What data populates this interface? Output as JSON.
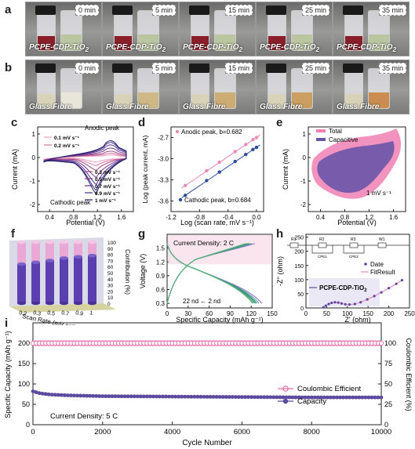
{
  "panels": {
    "a": {
      "letter": "a",
      "caption": "PCPE-CDP-TiO",
      "caption_sub": "2",
      "times": [
        "0 min",
        "5 min",
        "15 min",
        "25 min",
        "35 min"
      ]
    },
    "b": {
      "letter": "b",
      "caption": "Glass Fibre",
      "times": [
        "0 min",
        "5 min",
        "15 min",
        "25 min",
        "35 min"
      ]
    },
    "c": {
      "letter": "c",
      "xlabel": "Potential (V)",
      "ylabel": "Current (mA)",
      "anodic": "Anodic peak",
      "cathodic": "Cathodic peak",
      "legend": [
        "0.1 mV s⁻¹",
        "0.2 mV s⁻¹",
        "0.3 mV s⁻¹",
        "0.5 mV s⁻¹",
        "0.7 mV s⁻¹",
        "0.9 mV s⁻¹",
        "1 mV s⁻¹"
      ]
    },
    "d": {
      "letter": "d",
      "xlabel": "Log (scan rate, mV s⁻¹)",
      "ylabel": "Log (peak current, mA)",
      "anodic": "Anodic peak, b=0.682",
      "cathodic": "Cathodic peak, b=0.684"
    },
    "e": {
      "letter": "e",
      "xlabel": "Potential (V)",
      "ylabel": "Current (mA)",
      "legend": [
        "Total",
        "Capacitive"
      ],
      "rate": "1 mV s⁻¹"
    },
    "f": {
      "letter": "f",
      "xlabel": "Scan Rate (mV s⁻¹)",
      "ylabel": "Contribution (%)"
    },
    "g": {
      "letter": "g",
      "xlabel": "Specific Capacity (mAh g⁻¹)",
      "ylabel": "Voltage (V)",
      "density": "Current Density: 2 C",
      "cycles": "22 nd  ←  2 nd"
    },
    "h": {
      "letter": "h",
      "xlabel": "Z' (ohm)",
      "ylabel": "-Z'' (ohm)",
      "legend": [
        "Date",
        "FitResult"
      ],
      "sample": "PCPE-CDP-TiO",
      "sample_sub": "2",
      "circuit": [
        "R1",
        "R2",
        "CPE1",
        "R3",
        "CPE2",
        "W1"
      ]
    },
    "i": {
      "letter": "i",
      "xlabel": "Cycle Number",
      "ylabel_left": "Specific Capacity (mAh g⁻¹)",
      "ylabel_right": "Coulombic Efficient (%)",
      "legend": [
        "Coulombic Efficient",
        "Capacity"
      ],
      "density": "Current Density: 5 C"
    }
  },
  "colors": {
    "pink": "#e36fa8",
    "purple": "#5b4a9e",
    "lightpink": "#f2a9cc",
    "green": "#2e8b6e",
    "blue": "#2e4c9e"
  },
  "chart_data": [
    {
      "type": "line",
      "panel": "c",
      "xlim": [
        0.2,
        1.8
      ],
      "ylim": [
        -2.3,
        1.3
      ],
      "xticks": [
        "0.4",
        "0.8",
        "1.2",
        "1.6"
      ],
      "yticks": [
        "1",
        "0",
        "-1",
        "-2"
      ],
      "series_names": [
        "0.1 mV s⁻¹",
        "0.2 mV s⁻¹",
        "0.3 mV s⁻¹",
        "0.5 mV s⁻¹",
        "0.7 mV s⁻¹",
        "0.9 mV s⁻¹",
        "1 mV s⁻¹"
      ],
      "series_colors": [
        "#e8a0c0",
        "#d46fa0",
        "#a04a8a",
        "#7a3a8a",
        "#5a3090",
        "#3e2a8a",
        "#222266"
      ],
      "anodic_peak_current": [
        0.12,
        0.2,
        0.3,
        0.45,
        0.6,
        0.72,
        0.8
      ],
      "cathodic_peak_current": [
        -0.2,
        -0.35,
        -0.55,
        -0.85,
        -1.15,
        -1.4,
        -1.55
      ],
      "anodic_peak_potential": 1.42,
      "cathodic_peak_potential": 1.12
    },
    {
      "type": "scatter",
      "panel": "d",
      "xlim": [
        -1.2,
        0.1
      ],
      "ylim": [
        -3.75,
        -2.55
      ],
      "xticks": [
        "-1.2",
        "-0.8",
        "-0.4",
        "0.0"
      ],
      "yticks": [
        "-2.7",
        "-3.0",
        "-3.3",
        "-3.6"
      ],
      "series": [
        {
          "name": "Anodic peak, b=0.682",
          "x": [
            -1.0,
            -0.7,
            -0.52,
            -0.3,
            -0.15,
            -0.05,
            0.0
          ],
          "y": [
            -3.38,
            -3.17,
            -3.05,
            -2.9,
            -2.8,
            -2.73,
            -2.7
          ]
        },
        {
          "name": "Cathodic peak, b=0.684",
          "x": [
            -1.0,
            -0.7,
            -0.52,
            -0.3,
            -0.15,
            -0.05,
            0.0
          ],
          "y": [
            -3.52,
            -3.31,
            -3.19,
            -3.04,
            -2.94,
            -2.87,
            -2.84
          ]
        }
      ]
    },
    {
      "type": "area",
      "panel": "e",
      "xlim": [
        0.2,
        1.8
      ],
      "ylim": [
        -2.3,
        1.3
      ],
      "xticks": [
        "0.4",
        "0.8",
        "1.2",
        "1.6"
      ],
      "yticks": [
        "1",
        "0",
        "-1",
        "-2"
      ]
    },
    {
      "type": "bar",
      "panel": "f",
      "categories": [
        "0.2",
        "0.3",
        "0.5",
        "0.7",
        "0.9",
        "1"
      ],
      "capacitive_percent": [
        64,
        67,
        70,
        74,
        76,
        78
      ],
      "ylim": [
        0,
        100
      ],
      "yticks": [
        "0",
        "10",
        "20",
        "30",
        "40",
        "50",
        "60",
        "70",
        "80",
        "90",
        "100"
      ]
    },
    {
      "type": "line",
      "panel": "g",
      "xlim": [
        0,
        150
      ],
      "ylim": [
        0.2,
        1.8
      ],
      "xticks": [
        "0",
        "30",
        "60",
        "90",
        "120",
        "150"
      ],
      "yticks": [
        "0.3",
        "0.6",
        "0.9",
        "1.2",
        "1.5"
      ],
      "charge_end_capacity": [
        125,
        121,
        118,
        116,
        114,
        112
      ],
      "discharge_end_capacity": [
        135,
        131,
        128,
        126,
        124,
        122
      ]
    },
    {
      "type": "scatter",
      "panel": "h",
      "xlim": [
        0,
        250
      ],
      "ylim": [
        0,
        260
      ],
      "xticks": [
        "0",
        "50",
        "100",
        "150",
        "200",
        "250"
      ],
      "yticks": [
        "0",
        "50",
        "100",
        "150",
        "200",
        "250"
      ],
      "x": [
        42,
        48,
        55,
        62,
        70,
        78,
        86,
        95,
        105,
        118,
        132,
        148,
        165,
        182,
        200,
        218,
        232
      ],
      "y": [
        2,
        8,
        14,
        18,
        20,
        19,
        16,
        13,
        12,
        14,
        20,
        30,
        42,
        55,
        70,
        85,
        98
      ]
    },
    {
      "type": "line",
      "panel": "i",
      "xlim": [
        0,
        10000
      ],
      "ylim_left": [
        0,
        250
      ],
      "ylim_right": [
        0,
        125
      ],
      "xticks": [
        "0",
        "2000",
        "4000",
        "6000",
        "8000",
        "10000"
      ],
      "yticks_left": [
        "0",
        "50",
        "100",
        "150",
        "200"
      ],
      "yticks_right": [
        "0",
        "25",
        "50",
        "75",
        "100"
      ],
      "series": [
        {
          "name": "Coulombic Efficient",
          "x": [
            0,
            1000,
            2000,
            4000,
            6000,
            8000,
            10000
          ],
          "y": [
            100,
            100,
            100,
            100,
            100,
            100,
            100
          ]
        },
        {
          "name": "Capacity",
          "x": [
            0,
            200,
            500,
            1000,
            2000,
            4000,
            6000,
            8000,
            10000
          ],
          "y": [
            82,
            77,
            74,
            72,
            70,
            69,
            68,
            67,
            67
          ]
        }
      ]
    }
  ]
}
